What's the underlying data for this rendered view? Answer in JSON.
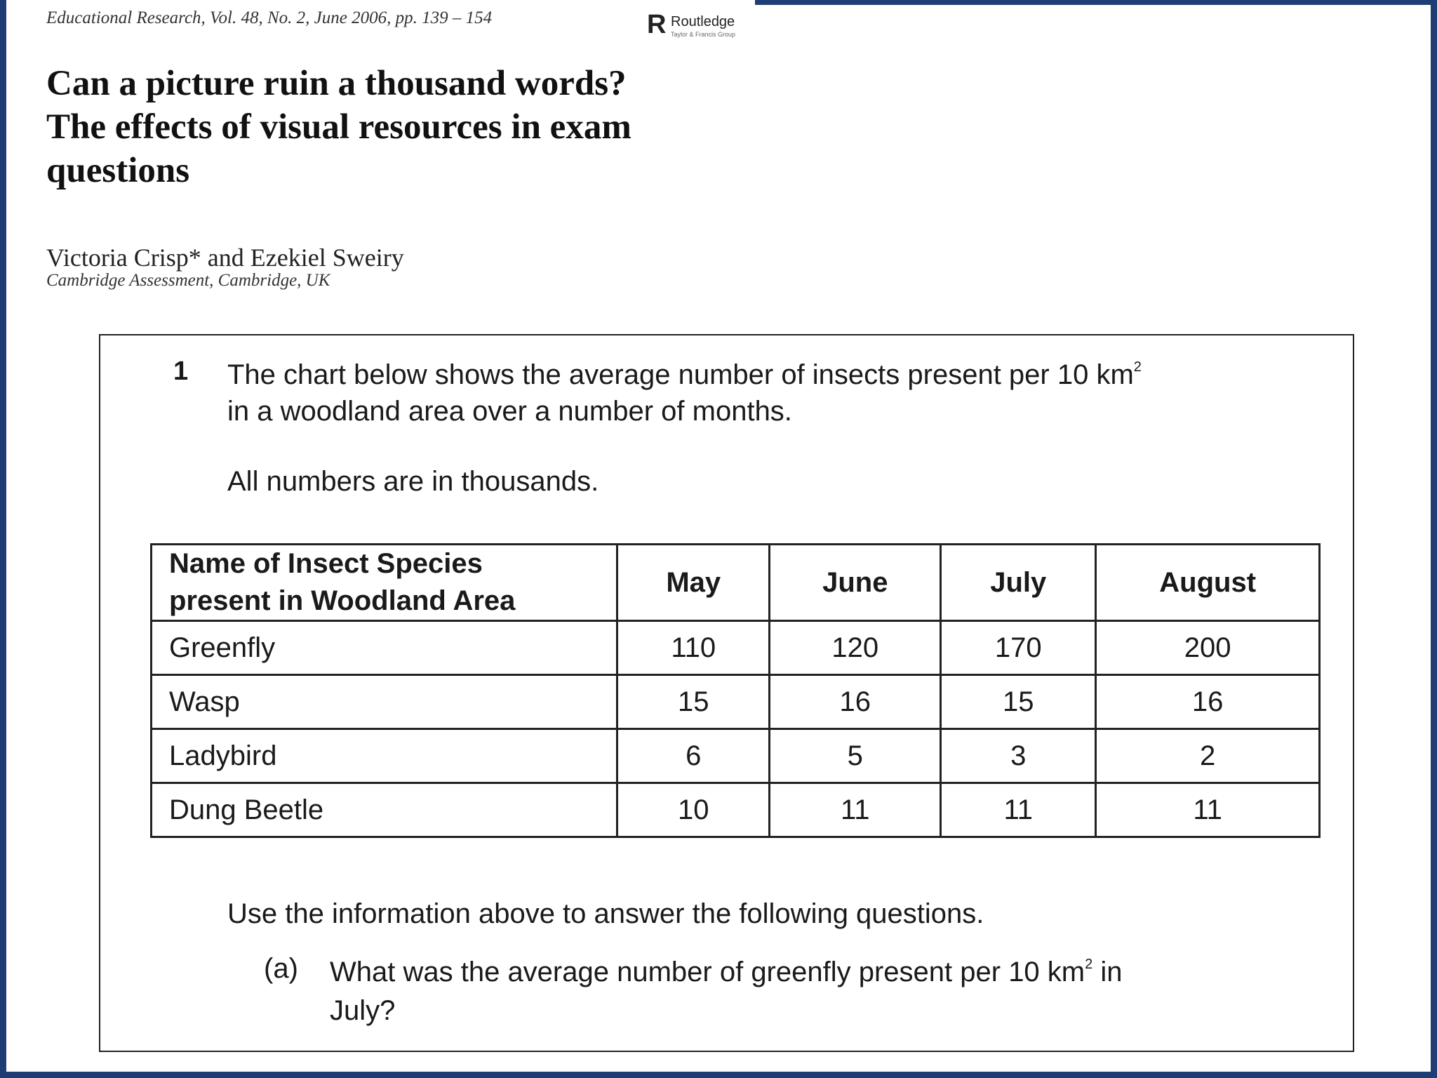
{
  "header": {
    "journal_citation": "Educational Research, Vol. 48, No. 2, June 2006, pp. 139 – 154",
    "publisher_logo": "R",
    "publisher_name": "Routledge",
    "publisher_subtitle": "Taylor & Francis Group"
  },
  "article": {
    "title_lines": [
      "Can a picture ruin a thousand words?",
      "The effects of visual resources in exam",
      "questions"
    ],
    "authors": "Victoria Crisp* and Ezekiel Sweiry",
    "affiliation": "Cambridge Assessment, Cambridge, UK"
  },
  "question": {
    "number": "1",
    "intro_line1_prefix": "The chart below shows the average number of insects present per 10 km",
    "intro_line1_sup": "2",
    "intro_line2": "in a woodland area over a number of months.",
    "note": "All numbers are in thousands.",
    "table": {
      "header_line1": "Name of Insect Species",
      "header_line2": "present in Woodland Area",
      "months": [
        "May",
        "June",
        "July",
        "August"
      ],
      "rows": [
        {
          "species": "Greenfly",
          "values": [
            "110",
            "120",
            "170",
            "200"
          ]
        },
        {
          "species": "Wasp",
          "values": [
            "15",
            "16",
            "15",
            "16"
          ]
        },
        {
          "species": "Ladybird",
          "values": [
            "6",
            "5",
            "3",
            "2"
          ]
        },
        {
          "species": "Dung Beetle",
          "values": [
            "10",
            "11",
            "11",
            "11"
          ]
        }
      ]
    },
    "use_info": "Use the information above to answer the following questions.",
    "part_a": {
      "label": "(a)",
      "line1_prefix": "What was the average number of greenfly present per 10 km",
      "line1_sup": "2",
      "line1_suffix": " in",
      "line2": "July?"
    }
  }
}
